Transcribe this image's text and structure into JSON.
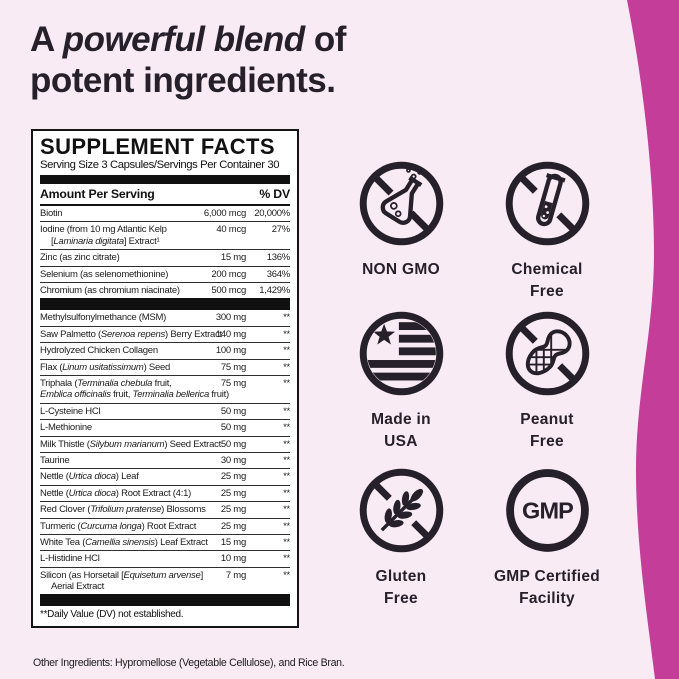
{
  "colors": {
    "background": "#f8ebf4",
    "accent": "#c33d99",
    "ink": "#26202a"
  },
  "header": {
    "prefix": "A ",
    "emphasis": "powerful blend",
    "suffix": " of",
    "line2": "potent ingredients."
  },
  "panel": {
    "title": "SUPPLEMENT FACTS",
    "serving_line": "Serving Size 3 Capsules/Servings Per Container 30",
    "col_amount": "Amount Per Serving",
    "col_dv": "% DV",
    "sections": [
      {
        "rows": [
          {
            "name": "Biotin",
            "amount": "6,000 mcg",
            "dv": "20,000%"
          },
          {
            "name": "Iodine (from 10 mg Atlantic Kelp",
            "name2": "[_Laminaria digitata_] Extract¹",
            "name2_indent": true,
            "amount": "40 mcg",
            "dv": "27%"
          },
          {
            "name": "Zinc (as zinc citrate)",
            "amount": "15 mg",
            "dv": "136%"
          },
          {
            "name": "Selenium (as selenomethionine)",
            "amount": "200 mcg",
            "dv": "364%"
          },
          {
            "name": "Chromium (as chromium niacinate)",
            "amount": "500 mcg",
            "dv": "1,429%"
          }
        ]
      },
      {
        "rows": [
          {
            "name": "Methylsulfonylmethance (MSM)",
            "amount": "300 mg",
            "dv": "**"
          },
          {
            "name": "Saw Palmetto (_Serenoa repens_) Berry Extract",
            "amount": "140 mg",
            "dv": "**"
          },
          {
            "name": "Hydrolyzed Chicken Collagen",
            "amount": "100 mg",
            "dv": "**"
          },
          {
            "name": "Flax (_Linum usitatissimum_) Seed",
            "amount": "75 mg",
            "dv": "**"
          },
          {
            "name": "Triphala (_Terminalia chebula_ fruit,",
            "name2": "_Emblica officinalis_ fruit, _Terminalia bellerica_ fruit)",
            "name2_indent": false,
            "amount": "75 mg",
            "dv": "**"
          },
          {
            "name": "L-Cysteine HCl",
            "amount": "50 mg",
            "dv": "**"
          },
          {
            "name": "L-Methionine",
            "amount": "50 mg",
            "dv": "**"
          },
          {
            "name": "Milk Thistle (_Silybum marianum_) Seed Extract",
            "amount": "50 mg",
            "dv": "**"
          },
          {
            "name": "Taurine",
            "amount": "30 mg",
            "dv": "**"
          },
          {
            "name": "Nettle (_Urtica dioca_) Leaf",
            "amount": "25 mg",
            "dv": "**"
          },
          {
            "name": "Nettle (_Urtica dioca_)  Root Extract (4:1)",
            "amount": "25 mg",
            "dv": "**"
          },
          {
            "name": "Red Clover (_Trifolium pratense_) Blossoms",
            "amount": "25 mg",
            "dv": "**"
          },
          {
            "name": "Turmeric (_Curcuma longa_) Root Extract",
            "amount": "25 mg",
            "dv": "**"
          },
          {
            "name": "White Tea (_Camellia sinensis_) Leaf Extract",
            "amount": "15 mg",
            "dv": "**"
          },
          {
            "name": "L-Histidine HCl",
            "amount": "10 mg",
            "dv": "**"
          },
          {
            "name": "Silicon (as Horsetail [_Equisetum arvense_]",
            "name2": "Aerial Extract",
            "name2_indent": true,
            "amount": "7 mg",
            "dv": "**"
          }
        ]
      }
    ],
    "footnote": "**Daily Value (DV) not established."
  },
  "other_ingredients": "Other Ingredients: Hypromellose (Vegetable Cellulose), and Rice Bran.",
  "badges": [
    {
      "label": "NON GMO",
      "icon": "no-gmo-flask-icon"
    },
    {
      "label": "Chemical\nFree",
      "icon": "no-chemical-test-tube-icon"
    },
    {
      "label": "Made in\nUSA",
      "icon": "usa-flag-icon"
    },
    {
      "label": "Peanut\nFree",
      "icon": "no-peanut-icon"
    },
    {
      "label": "Gluten\nFree",
      "icon": "no-gluten-wheat-icon"
    },
    {
      "label": "GMP Certified\nFacility",
      "icon": "gmp-circle-icon",
      "icon_text": "GMP"
    }
  ]
}
